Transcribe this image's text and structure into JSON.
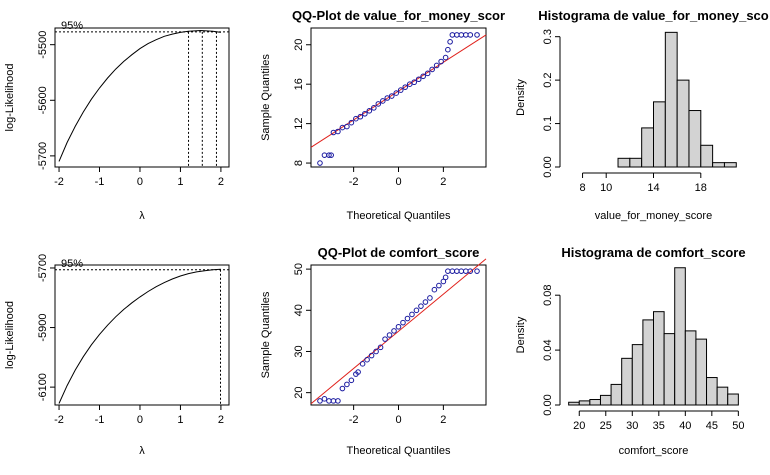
{
  "chart_data": [
    {
      "type": "line",
      "panel": "boxcox-value",
      "title": "",
      "xlabel": "λ",
      "ylabel": "log-Likelihood",
      "xlim": [
        -2.1,
        2.2
      ],
      "ylim": [
        -5720,
        -5470
      ],
      "x_ticks": [
        -2,
        -1,
        0,
        1,
        2
      ],
      "y_ticks": [
        -5700,
        -5600,
        -5500
      ],
      "annotation": "95%",
      "ci_level": -5477,
      "ci_lines": [
        1.2,
        1.54,
        1.89
      ],
      "x": [
        -2.0,
        -1.8,
        -1.6,
        -1.4,
        -1.2,
        -1.0,
        -0.8,
        -0.6,
        -0.4,
        -0.2,
        0.0,
        0.2,
        0.4,
        0.6,
        0.8,
        1.0,
        1.2,
        1.4,
        1.5,
        1.6,
        1.8,
        2.0
      ],
      "values": [
        -5710,
        -5676,
        -5647,
        -5621,
        -5598,
        -5578,
        -5560,
        -5544,
        -5530,
        -5518,
        -5507,
        -5498,
        -5491,
        -5485,
        -5481,
        -5478,
        -5476,
        -5475,
        -5474.5,
        -5475,
        -5476,
        -5478
      ]
    },
    {
      "type": "scatter",
      "panel": "qq-value",
      "title": "QQ-Plot de value_for_money_scor",
      "xlabel": "Theoretical Quantiles",
      "ylabel": "Sample Quantiles",
      "xlim": [
        -3.9,
        3.9
      ],
      "ylim": [
        7.6,
        21.7
      ],
      "x_ticks": [
        -2,
        0,
        2
      ],
      "y_ticks": [
        8,
        12,
        16,
        20
      ],
      "reference_line": {
        "x": [
          -3.9,
          3.9
        ],
        "y": [
          9.6,
          21.0
        ]
      },
      "points": [
        [
          -3.5,
          8
        ],
        [
          -3.3,
          8.8
        ],
        [
          -3.1,
          8.8
        ],
        [
          -3.0,
          8.8
        ],
        [
          -2.9,
          11.1
        ],
        [
          -2.7,
          11.2
        ],
        [
          -2.5,
          11.6
        ],
        [
          -2.3,
          11.7
        ],
        [
          -2.1,
          12.1
        ],
        [
          -1.9,
          12.5
        ],
        [
          -1.7,
          12.7
        ],
        [
          -1.5,
          13.0
        ],
        [
          -1.3,
          13.3
        ],
        [
          -1.1,
          13.6
        ],
        [
          -0.9,
          14.0
        ],
        [
          -0.7,
          14.3
        ],
        [
          -0.5,
          14.6
        ],
        [
          -0.3,
          14.8
        ],
        [
          -0.1,
          15.1
        ],
        [
          0.1,
          15.4
        ],
        [
          0.3,
          15.7
        ],
        [
          0.5,
          16.0
        ],
        [
          0.7,
          16.2
        ],
        [
          0.9,
          16.5
        ],
        [
          1.1,
          16.8
        ],
        [
          1.3,
          17.1
        ],
        [
          1.5,
          17.5
        ],
        [
          1.7,
          17.9
        ],
        [
          1.9,
          18.3
        ],
        [
          2.1,
          18.7
        ],
        [
          2.2,
          19.5
        ],
        [
          2.3,
          20.3
        ],
        [
          2.4,
          21
        ],
        [
          2.6,
          21
        ],
        [
          2.8,
          21
        ],
        [
          3.0,
          21
        ],
        [
          3.2,
          21
        ],
        [
          3.5,
          21
        ]
      ]
    },
    {
      "type": "bar",
      "panel": "hist-value",
      "title": "Histograma de value_for_money_sco",
      "xlabel": "value_for_money_score",
      "ylabel": "Density",
      "xlim": [
        6.6,
        21.4
      ],
      "ylim": [
        0,
        0.32
      ],
      "x_ticks": [
        8,
        10,
        14,
        18
      ],
      "y_ticks": [
        0.0,
        0.1,
        0.2,
        0.3
      ],
      "bins": [
        [
          7,
          8,
          0
        ],
        [
          8,
          9,
          0
        ],
        [
          9,
          10,
          0
        ],
        [
          10,
          11,
          0
        ],
        [
          11,
          12,
          0.02
        ],
        [
          12,
          13,
          0.02
        ],
        [
          13,
          14,
          0.09
        ],
        [
          14,
          15,
          0.15
        ],
        [
          15,
          16,
          0.31
        ],
        [
          16,
          17,
          0.2
        ],
        [
          17,
          18,
          0.13
        ],
        [
          18,
          19,
          0.05
        ],
        [
          19,
          20,
          0.01
        ],
        [
          20,
          21,
          0.01
        ]
      ]
    },
    {
      "type": "line",
      "panel": "boxcox-comfort",
      "title": "",
      "xlabel": "λ",
      "ylabel": "log-Likelihood",
      "xlim": [
        -2.1,
        2.2
      ],
      "ylim": [
        -6160,
        -5690
      ],
      "x_ticks": [
        -2,
        -1,
        0,
        1,
        2
      ],
      "y_ticks": [
        -6100,
        -5900,
        -5700
      ],
      "annotation": "95%",
      "ci_level": -5706,
      "ci_lines": [
        1.99
      ],
      "x": [
        -2.0,
        -1.8,
        -1.6,
        -1.4,
        -1.2,
        -1.0,
        -0.8,
        -0.6,
        -0.4,
        -0.2,
        0.0,
        0.2,
        0.4,
        0.6,
        0.8,
        1.0,
        1.2,
        1.4,
        1.6,
        1.8,
        2.0
      ],
      "values": [
        -6155,
        -6095,
        -6043,
        -5998,
        -5958,
        -5923,
        -5892,
        -5864,
        -5839,
        -5817,
        -5797,
        -5779,
        -5763,
        -5749,
        -5737,
        -5727,
        -5719,
        -5713,
        -5709,
        -5706,
        -5704
      ]
    },
    {
      "type": "scatter",
      "panel": "qq-comfort",
      "title": "QQ-Plot de comfort_score",
      "xlabel": "Theoretical Quantiles",
      "ylabel": "Sample Quantiles",
      "xlim": [
        -3.9,
        3.9
      ],
      "ylim": [
        17.0,
        51.0
      ],
      "x_ticks": [
        -2,
        0,
        2
      ],
      "y_ticks": [
        20,
        30,
        40,
        50
      ],
      "reference_line": {
        "x": [
          -3.9,
          3.9
        ],
        "y": [
          17.3,
          52.5
        ]
      },
      "points": [
        [
          -3.5,
          18
        ],
        [
          -3.3,
          18.5
        ],
        [
          -3.1,
          18
        ],
        [
          -2.9,
          18
        ],
        [
          -2.7,
          18
        ],
        [
          -2.5,
          21
        ],
        [
          -2.3,
          22
        ],
        [
          -2.1,
          23
        ],
        [
          -1.9,
          24.5
        ],
        [
          -1.8,
          25
        ],
        [
          -1.6,
          27
        ],
        [
          -1.4,
          28
        ],
        [
          -1.2,
          29
        ],
        [
          -1.0,
          30
        ],
        [
          -0.8,
          31
        ],
        [
          -0.6,
          33
        ],
        [
          -0.4,
          34
        ],
        [
          -0.2,
          35
        ],
        [
          0.0,
          36
        ],
        [
          0.2,
          37
        ],
        [
          0.4,
          38
        ],
        [
          0.6,
          39
        ],
        [
          0.8,
          40
        ],
        [
          1.0,
          41
        ],
        [
          1.2,
          42
        ],
        [
          1.4,
          43
        ],
        [
          1.6,
          45
        ],
        [
          1.8,
          46
        ],
        [
          2.0,
          47
        ],
        [
          2.1,
          48
        ],
        [
          2.2,
          49.5
        ],
        [
          2.4,
          49.5
        ],
        [
          2.6,
          49.5
        ],
        [
          2.8,
          49.5
        ],
        [
          3.0,
          49.5
        ],
        [
          3.2,
          49.5
        ],
        [
          3.5,
          49.5
        ]
      ]
    },
    {
      "type": "bar",
      "panel": "hist-comfort",
      "title": "Histograma de comfort_score",
      "xlabel": "comfort_score",
      "ylabel": "Density",
      "xlim": [
        17.5,
        50.5
      ],
      "ylim": [
        0,
        0.102
      ],
      "x_ticks": [
        20,
        25,
        30,
        35,
        40,
        45,
        50
      ],
      "y_ticks": [
        0.0,
        0.04,
        0.08
      ],
      "bins": [
        [
          18,
          20,
          0.002
        ],
        [
          20,
          22,
          0.003
        ],
        [
          22,
          24,
          0.004
        ],
        [
          24,
          26,
          0.007
        ],
        [
          26,
          28,
          0.015
        ],
        [
          28,
          30,
          0.034
        ],
        [
          30,
          32,
          0.044
        ],
        [
          32,
          34,
          0.062
        ],
        [
          34,
          36,
          0.068
        ],
        [
          36,
          38,
          0.052
        ],
        [
          38,
          40,
          0.1
        ],
        [
          40,
          42,
          0.054
        ],
        [
          42,
          44,
          0.048
        ],
        [
          44,
          46,
          0.02
        ],
        [
          46,
          48,
          0.013
        ],
        [
          48,
          50,
          0.008
        ]
      ]
    }
  ]
}
